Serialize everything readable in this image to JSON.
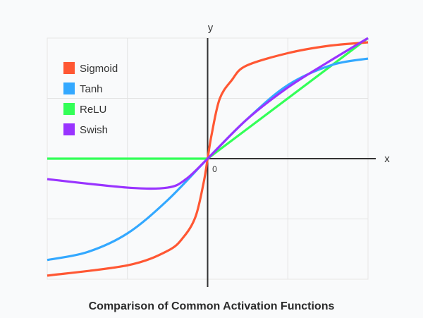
{
  "chart_data": {
    "type": "line",
    "title": "Comparison of Common Activation Functions",
    "xlabel": "x",
    "ylabel": "y",
    "origin_label": "0",
    "xlim": [
      -2,
      2
    ],
    "ylim": [
      -2,
      2
    ],
    "grid": true,
    "legend_position": "top-left",
    "series": [
      {
        "name": "Sigmoid",
        "color": "#ff5733",
        "points": [
          [
            -2,
            -1.94
          ],
          [
            -1,
            -1.77
          ],
          [
            -0.5,
            -1.53
          ],
          [
            -0.3,
            -1.3
          ],
          [
            -0.15,
            -0.96
          ],
          [
            -0.05,
            -0.4
          ],
          [
            0,
            0
          ],
          [
            0.05,
            0.4
          ],
          [
            0.15,
            0.99
          ],
          [
            0.3,
            1.3
          ],
          [
            0.48,
            1.54
          ],
          [
            1,
            1.75
          ],
          [
            1.5,
            1.87
          ],
          [
            2,
            1.93
          ]
        ]
      },
      {
        "name": "Tanh",
        "color": "#33a8ff",
        "points": [
          [
            -2,
            -1.68
          ],
          [
            -1.5,
            -1.55
          ],
          [
            -1,
            -1.24
          ],
          [
            -0.5,
            -0.69
          ],
          [
            0,
            0
          ],
          [
            0.48,
            0.64
          ],
          [
            1,
            1.22
          ],
          [
            1.54,
            1.55
          ],
          [
            2,
            1.66
          ]
        ]
      },
      {
        "name": "ReLU",
        "color": "#33ff57",
        "points": [
          [
            -2,
            0
          ],
          [
            0,
            0
          ],
          [
            2,
            2
          ]
        ]
      },
      {
        "name": "Swish",
        "color": "#9933ff",
        "points": [
          [
            -2,
            -0.34
          ],
          [
            -1,
            -0.48
          ],
          [
            -0.5,
            -0.48
          ],
          [
            -0.27,
            -0.34
          ],
          [
            0,
            0
          ],
          [
            0.48,
            0.64
          ],
          [
            1,
            1.18
          ],
          [
            1.5,
            1.6
          ],
          [
            2,
            2.0
          ]
        ]
      }
    ]
  }
}
